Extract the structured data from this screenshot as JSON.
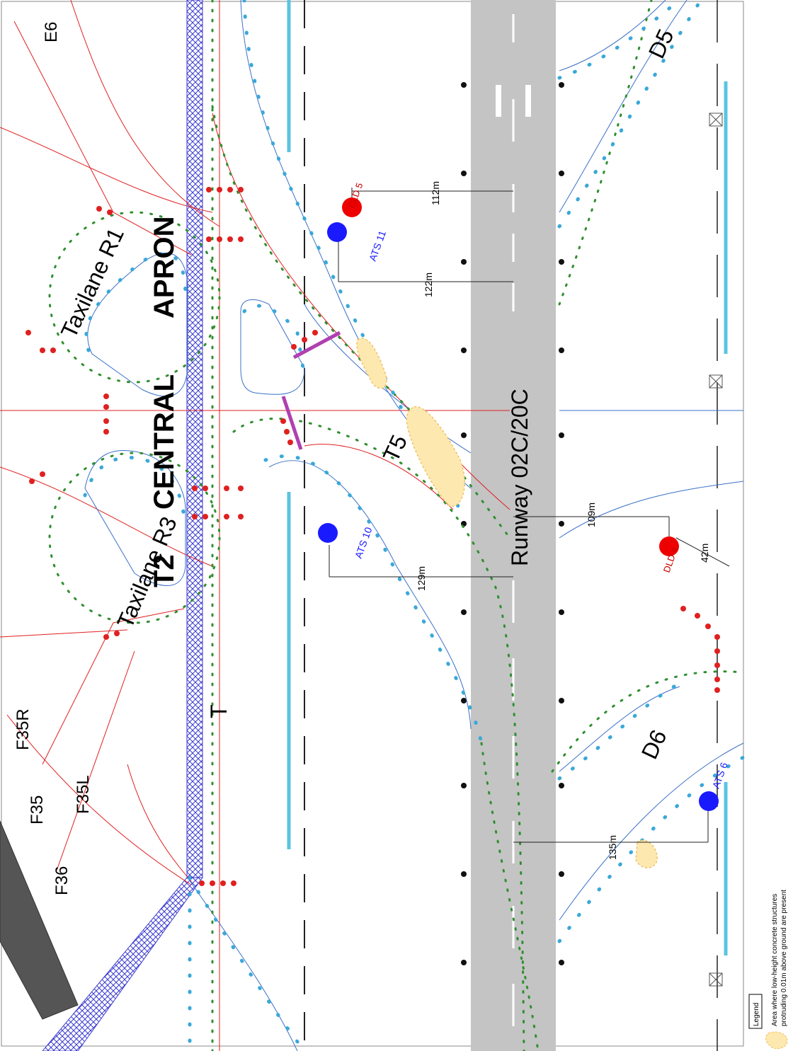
{
  "map": {
    "runway_label": "Runway 02C/20C",
    "apron_labels": [
      "T2",
      "CENTRAL",
      "APRON"
    ],
    "taxilanes": [
      "Taxilane R3",
      "Taxilane R1"
    ],
    "taxiways": [
      "T5",
      "D5",
      "D6"
    ],
    "stands": [
      "E6",
      "F35R",
      "F35",
      "F35L",
      "F36"
    ],
    "marker_t": "T",
    "ats_points": [
      {
        "label": "ATS 11",
        "color": "#1a1aff"
      },
      {
        "label": "ATS 10",
        "color": "#1a1aff"
      },
      {
        "label": "ATS 6",
        "color": "#1a1aff"
      }
    ],
    "red_points": [
      {
        "label": "DLD 5",
        "color": "#ee0000"
      },
      {
        "label": "DLD 4",
        "color": "#ee0000"
      }
    ],
    "distances": [
      "112m",
      "122m",
      "129m",
      "109m",
      "42m",
      "135m"
    ],
    "colors": {
      "runway": "#c4c4c4",
      "light_blue": "#3aa8d8",
      "green_light": "#2f8f2f",
      "red_line": "#e02020",
      "pad": "#fde8b0",
      "hatch": "#3a3ad0",
      "building": "#555555"
    }
  },
  "legend": {
    "title": "Legend",
    "item_text_line1": "Area where low-height concrete structures",
    "item_text_line2": "protruding 0.01m above ground are present"
  }
}
